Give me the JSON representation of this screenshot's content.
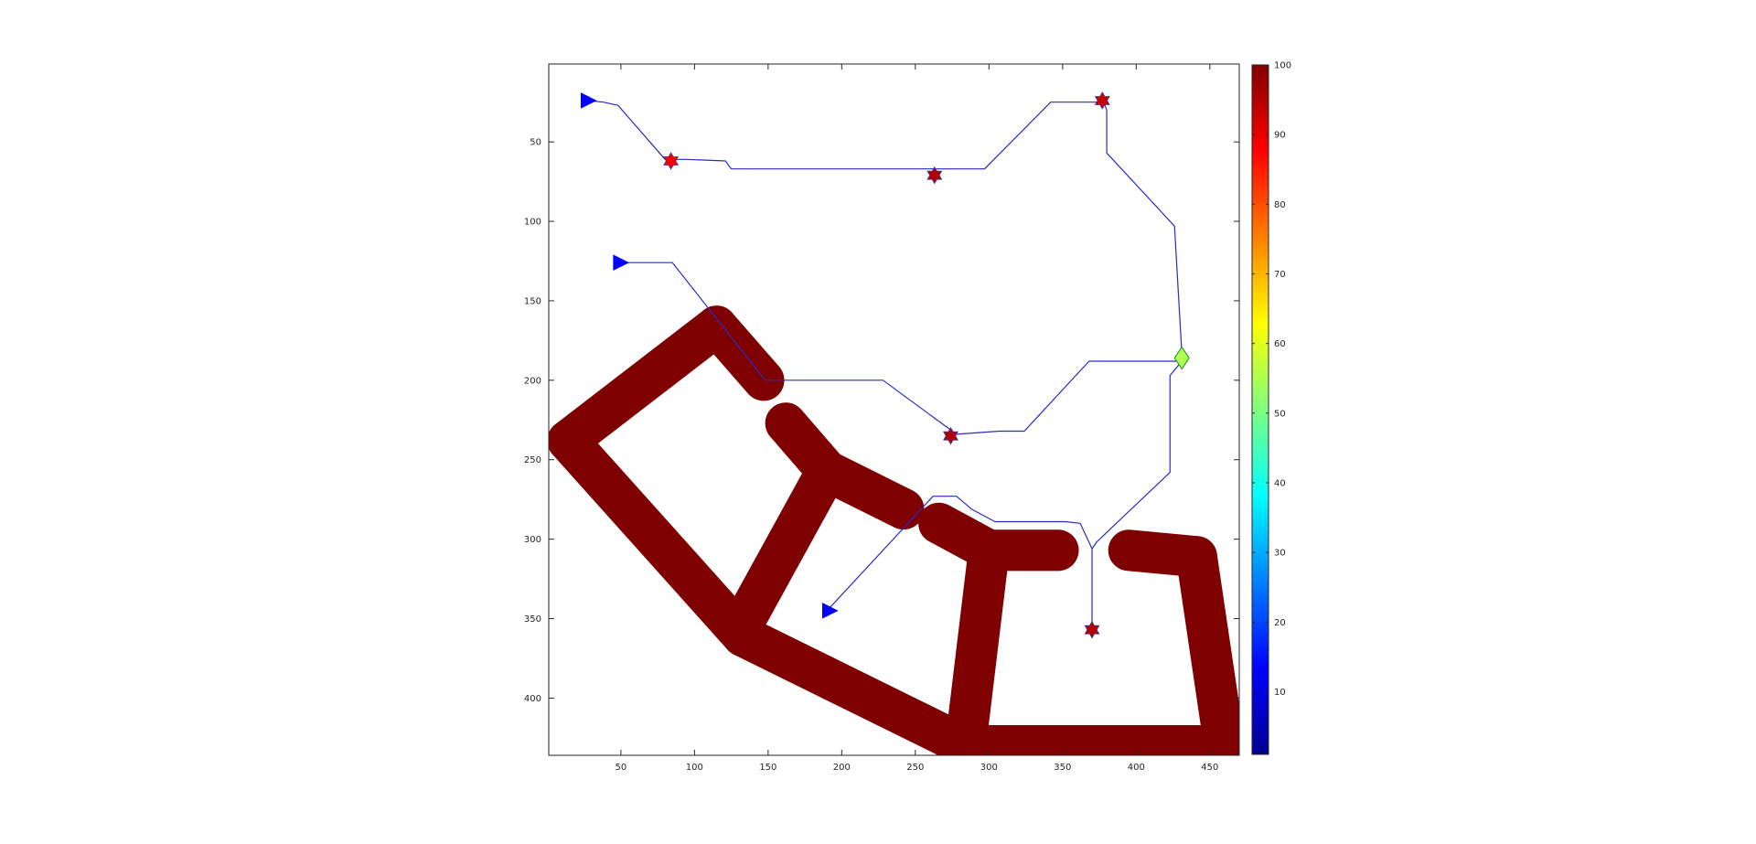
{
  "chart_data": {
    "type": "heatmap",
    "title": "",
    "xlabel": "",
    "ylabel": "",
    "xlim": [
      1,
      470
    ],
    "ylim": [
      1,
      436
    ],
    "y_reversed": true,
    "grid": false,
    "x_ticks": [
      50,
      100,
      150,
      200,
      250,
      300,
      350,
      400,
      450
    ],
    "y_ticks": [
      50,
      100,
      150,
      200,
      250,
      300,
      350,
      400
    ],
    "obstacle_color": "#7f0000",
    "obstacle_value": 100,
    "obstacle_segments": [
      {
        "from": [
          14,
          238
        ],
        "to": [
          115,
          166
        ]
      },
      {
        "from": [
          115,
          166
        ],
        "to": [
          147,
          200
        ]
      },
      {
        "from": [
          14,
          238
        ],
        "to": [
          133,
          361
        ]
      },
      {
        "from": [
          133,
          361
        ],
        "to": [
          284,
          430
        ]
      },
      {
        "from": [
          284,
          430
        ],
        "to": [
          460,
          430
        ]
      },
      {
        "from": [
          460,
          430
        ],
        "to": [
          441,
          311
        ]
      },
      {
        "from": [
          441,
          311
        ],
        "to": [
          395,
          307
        ]
      },
      {
        "from": [
          347,
          307
        ],
        "to": [
          300,
          307
        ]
      },
      {
        "from": [
          300,
          307
        ],
        "to": [
          284,
          430
        ]
      },
      {
        "from": [
          300,
          307
        ],
        "to": [
          266,
          290
        ]
      },
      {
        "from": [
          133,
          353
        ],
        "to": [
          190,
          257
        ]
      },
      {
        "from": [
          190,
          257
        ],
        "to": [
          162,
          227
        ]
      },
      {
        "from": [
          190,
          257
        ],
        "to": [
          242,
          281
        ]
      }
    ],
    "obstacle_width": 28,
    "colorbar": {
      "min": 1,
      "max": 100,
      "ticks": [
        10,
        20,
        30,
        40,
        50,
        60,
        70,
        80,
        90,
        100
      ],
      "colormap": "jet"
    },
    "paths": [
      {
        "points": [
          [
            28,
            24
          ],
          [
            38,
            25
          ],
          [
            48,
            27
          ],
          [
            80,
            61
          ],
          [
            94,
            61
          ],
          [
            121,
            62
          ],
          [
            125,
            67
          ],
          [
            263,
            67
          ],
          [
            297,
            67
          ],
          [
            342,
            25
          ],
          [
            378,
            25
          ],
          [
            380,
            30
          ],
          [
            380,
            57
          ],
          [
            426,
            103
          ],
          [
            431,
            183
          ],
          [
            431,
            188
          ],
          [
            368,
            188
          ],
          [
            324,
            232
          ],
          [
            307,
            232
          ],
          [
            278,
            234
          ],
          [
            228,
            200
          ],
          [
            148,
            200
          ],
          [
            85,
            126
          ],
          [
            50,
            126
          ]
        ]
      },
      {
        "points": [
          [
            431,
            188
          ],
          [
            423,
            197
          ],
          [
            423,
            258
          ],
          [
            382,
            294
          ],
          [
            373,
            302
          ],
          [
            370,
            306
          ],
          [
            370,
            357
          ]
        ]
      },
      {
        "points": [
          [
            370,
            306
          ],
          [
            362,
            290
          ],
          [
            352,
            289
          ],
          [
            304,
            289
          ],
          [
            288,
            281
          ],
          [
            278,
            273
          ],
          [
            262,
            273
          ],
          [
            190,
            345
          ]
        ]
      }
    ],
    "path_color": "#2b2bc2",
    "markers": [
      {
        "type": "start",
        "shape": "triangle",
        "x": 28,
        "y": 24,
        "value": 13
      },
      {
        "type": "start",
        "shape": "triangle",
        "x": 50,
        "y": 126,
        "value": 13
      },
      {
        "type": "start",
        "shape": "triangle",
        "x": 192,
        "y": 345,
        "value": 13
      },
      {
        "type": "goal",
        "shape": "hexagram",
        "x": 84,
        "y": 62,
        "value": 88
      },
      {
        "type": "goal",
        "shape": "hexagram",
        "x": 263,
        "y": 71,
        "value": 95
      },
      {
        "type": "goal",
        "shape": "hexagram",
        "x": 377,
        "y": 24,
        "value": 93
      },
      {
        "type": "goal",
        "shape": "hexagram",
        "x": 274,
        "y": 235,
        "value": 95
      },
      {
        "type": "goal",
        "shape": "hexagram",
        "x": 370,
        "y": 357,
        "value": 95
      },
      {
        "type": "hub",
        "shape": "diamond",
        "x": 431,
        "y": 186,
        "value": 55
      }
    ]
  }
}
